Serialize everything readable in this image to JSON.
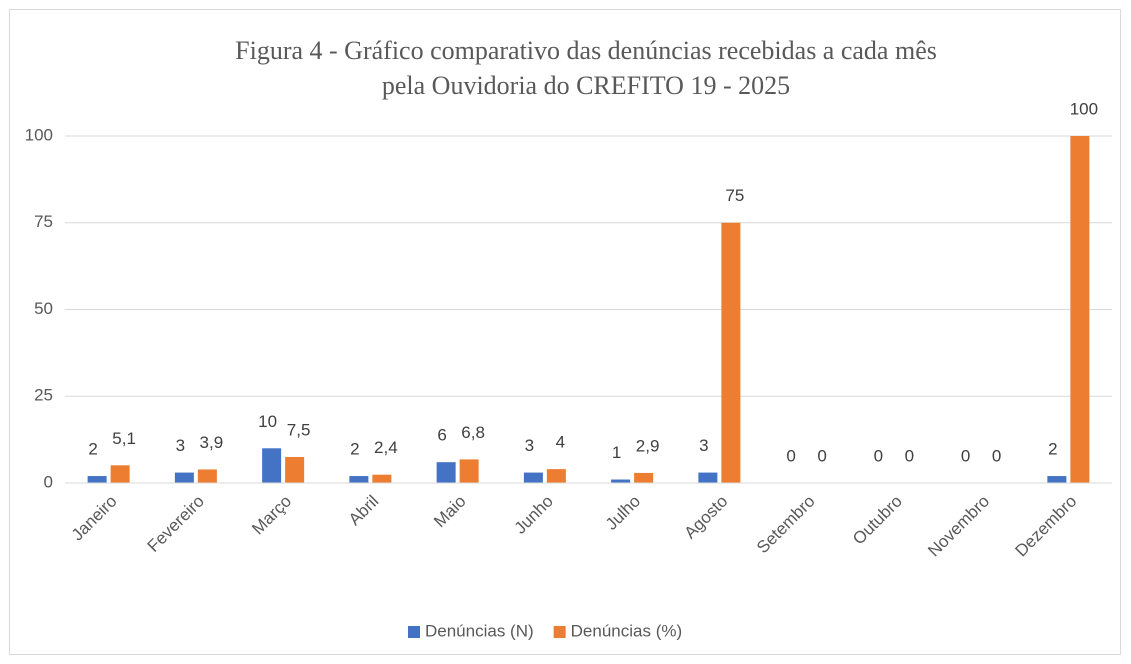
{
  "chart_data": {
    "type": "bar",
    "title": [
      "Figura 4 - Gráfico comparativo das denúncias recebidas a cada mês",
      "pela Ouvidoria do CREFITO 19  - 2025"
    ],
    "categories": [
      "Janeiro",
      "Fevereiro",
      "Março",
      "Abril",
      "Maio",
      "Junho",
      "Julho",
      "Agosto",
      "Setembro",
      "Outubro",
      "Novembro",
      "Dezembro"
    ],
    "series": [
      {
        "name": "Denúncias (N)",
        "color": "#4472c4",
        "values": [
          2,
          3,
          10,
          2,
          6,
          3,
          1,
          3,
          0,
          0,
          0,
          2
        ]
      },
      {
        "name": "Denúncias (%)",
        "color": "#ed7d31",
        "values": [
          5.1,
          3.9,
          7.5,
          2.4,
          6.8,
          4,
          2.9,
          75,
          0,
          0,
          0,
          100
        ],
        "value_labels": [
          "5,1",
          "3,9",
          "7,5",
          "2,4",
          "6,8",
          "4",
          "2,9",
          "75",
          "0",
          "0",
          "0",
          "100"
        ]
      }
    ],
    "ylim": [
      0,
      100
    ],
    "yticks": [
      0,
      25,
      50,
      75,
      100
    ],
    "grid": true,
    "legend": "bottom"
  }
}
